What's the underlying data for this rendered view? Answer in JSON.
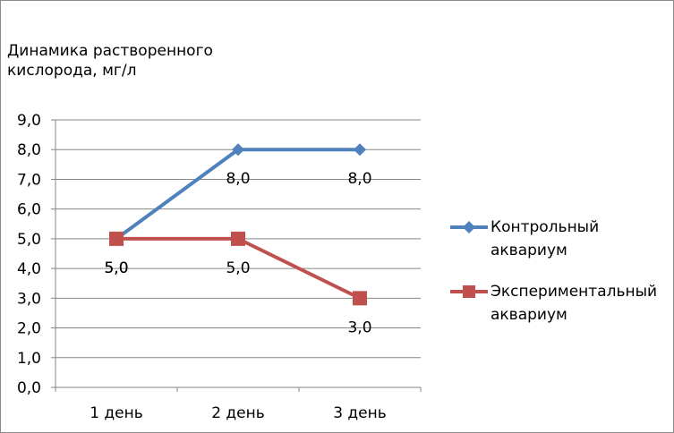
{
  "chart_data": {
    "type": "line",
    "title_lines": [
      "Динамика растворенного",
      "кислорода, мг/л"
    ],
    "categories": [
      "1 день",
      "2 день",
      "3 день"
    ],
    "series": [
      {
        "name_lines": [
          "Контрольный",
          "аквариум"
        ],
        "values": [
          5.0,
          8.0,
          8.0
        ],
        "data_labels": [
          "5,0",
          "8,0",
          "8,0"
        ],
        "color": "#4f81bd",
        "marker": "diamond"
      },
      {
        "name_lines": [
          "Экспериментальный",
          "аквариум"
        ],
        "values": [
          5.0,
          5.0,
          3.0
        ],
        "data_labels": [
          "5,0",
          "5,0",
          "3,0"
        ],
        "color": "#c0504d",
        "marker": "square"
      }
    ],
    "ylim": [
      0,
      9
    ],
    "yticks": [
      "0,0",
      "1,0",
      "2,0",
      "3,0",
      "4,0",
      "5,0",
      "6,0",
      "7,0",
      "8,0",
      "9,0"
    ],
    "grid": true,
    "legend_position": "right",
    "gridline_color": "#868686"
  }
}
